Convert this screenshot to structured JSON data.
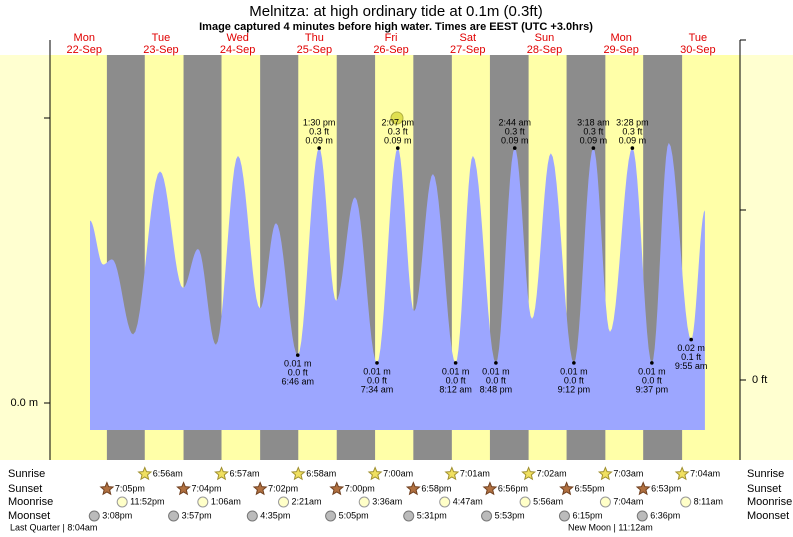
{
  "chart_data": {
    "type": "tide",
    "title": "Melnitza: at high  ordinary tide at 0.1m (0.3ft)",
    "subtitle": "Image captured 4 minutes before high water. Times are EEST (UTC +3.0hrs)",
    "left_axis_label": "0.0 m",
    "right_axis_label": "0 ft",
    "day_names": [
      "Mon",
      "Tue",
      "Wed",
      "Thu",
      "Fri",
      "Sat",
      "Sun",
      "Mon",
      "Tue"
    ],
    "dates": [
      "22-Sep",
      "23-Sep",
      "24-Sep",
      "25-Sep",
      "26-Sep",
      "27-Sep",
      "28-Sep",
      "29-Sep",
      "30-Sep"
    ],
    "color": "#9ca6ff",
    "night_color": "#8c8c8c",
    "points": [
      {
        "hour": 13.8,
        "m": 0.062
      },
      {
        "hour": 17.9,
        "m": 0.045
      },
      {
        "hour": 20.7,
        "m": 0.047
      },
      {
        "hour": 27.3,
        "m": 0.018
      },
      {
        "hour": 35.7,
        "m": 0.081
      },
      {
        "hour": 42.9,
        "m": 0.036
      },
      {
        "hour": 47.6,
        "m": 0.051
      },
      {
        "hour": 53.2,
        "m": 0.014
      },
      {
        "hour": 60.1,
        "m": 0.087
      },
      {
        "hour": 67.0,
        "m": 0.028
      },
      {
        "hour": 72.0,
        "m": 0.061
      },
      {
        "hour": 78.8,
        "m": 0.01,
        "time": "6:46 am",
        "ft": "0.0 ft",
        "m_label": "0.01 m"
      },
      {
        "hour": 85.5,
        "m": 0.09,
        "time": "1:30 pm",
        "ft": "0.3 ft",
        "m_label": "0.09 m"
      },
      {
        "hour": 90.8,
        "m": 0.031
      },
      {
        "hour": 96.7,
        "m": 0.071
      },
      {
        "hour": 103.6,
        "m": 0.007,
        "time": "7:34 am",
        "ft": "0.0 ft",
        "m_label": "0.01 m"
      },
      {
        "hour": 110.1,
        "m": 0.09,
        "time": "2:07 pm",
        "ft": "0.3 ft",
        "m_label": "0.09 m"
      },
      {
        "hour": 115.2,
        "m": 0.027
      },
      {
        "hour": 121.1,
        "m": 0.08
      },
      {
        "hour": 128.2,
        "m": 0.007,
        "time": "8:12 am",
        "ft": "0.0 ft",
        "m_label": "0.01 m"
      },
      {
        "hour": 133.6,
        "m": 0.087
      },
      {
        "hour": 140.8,
        "m": 0.007,
        "time": "8:48 pm",
        "ft": "0.0 ft",
        "m_label": "0.01 m"
      },
      {
        "hour": 146.7,
        "m": 0.09,
        "time": "2:44 am",
        "ft": "0.3 ft",
        "m_label": "0.09 m"
      },
      {
        "hour": 152.1,
        "m": 0.024
      },
      {
        "hour": 158.0,
        "m": 0.088
      },
      {
        "hour": 165.2,
        "m": 0.007,
        "time": "9:12 pm",
        "ft": "0.0 ft",
        "m_label": "0.01 m"
      },
      {
        "hour": 171.3,
        "m": 0.09,
        "time": "3:18 am",
        "ft": "0.3 ft",
        "m_label": "0.09 m"
      },
      {
        "hour": 176.5,
        "m": 0.019
      },
      {
        "hour": 183.5,
        "m": 0.09,
        "time": "3:28 pm",
        "ft": "0.3 ft",
        "m_label": "0.09 m"
      },
      {
        "hour": 189.6,
        "m": 0.007,
        "time": "9:37 pm",
        "ft": "0.0 ft",
        "m_label": "0.01 m"
      },
      {
        "hour": 194.9,
        "m": 0.092
      },
      {
        "hour": 201.9,
        "m": 0.016,
        "time": "9:55 am",
        "ft": "0.1 ft",
        "m_label": "0.02 m"
      },
      {
        "hour": 206.2,
        "m": 0.066
      }
    ],
    "rows": [
      {
        "name": "Sunrise",
        "icon": "sunrise",
        "times": [
          "6:56am",
          "6:57am",
          "6:58am",
          "7:00am",
          "7:01am",
          "7:02am",
          "7:03am",
          "7:04am"
        ]
      },
      {
        "name": "Sunset",
        "icon": "sunset",
        "times": [
          "7:05pm",
          "7:04pm",
          "7:02pm",
          "7:00pm",
          "6:58pm",
          "6:56pm",
          "6:55pm",
          "6:53pm"
        ]
      },
      {
        "name": "Moonrise",
        "icon": "moonrise",
        "times": [
          "11:52pm",
          "1:06am",
          "2:21am",
          "3:36am",
          "4:47am",
          "5:56am",
          "7:04am",
          "8:11am"
        ]
      },
      {
        "name": "Moonset",
        "icon": "moonset",
        "times": [
          "3:08pm",
          "3:57pm",
          "4:35pm",
          "5:05pm",
          "5:31pm",
          "5:53pm",
          "6:15pm",
          "6:36pm"
        ]
      }
    ],
    "moon_phases": [
      "Last Quarter | 8:04am",
      "New Moon | 11:12am"
    ]
  }
}
